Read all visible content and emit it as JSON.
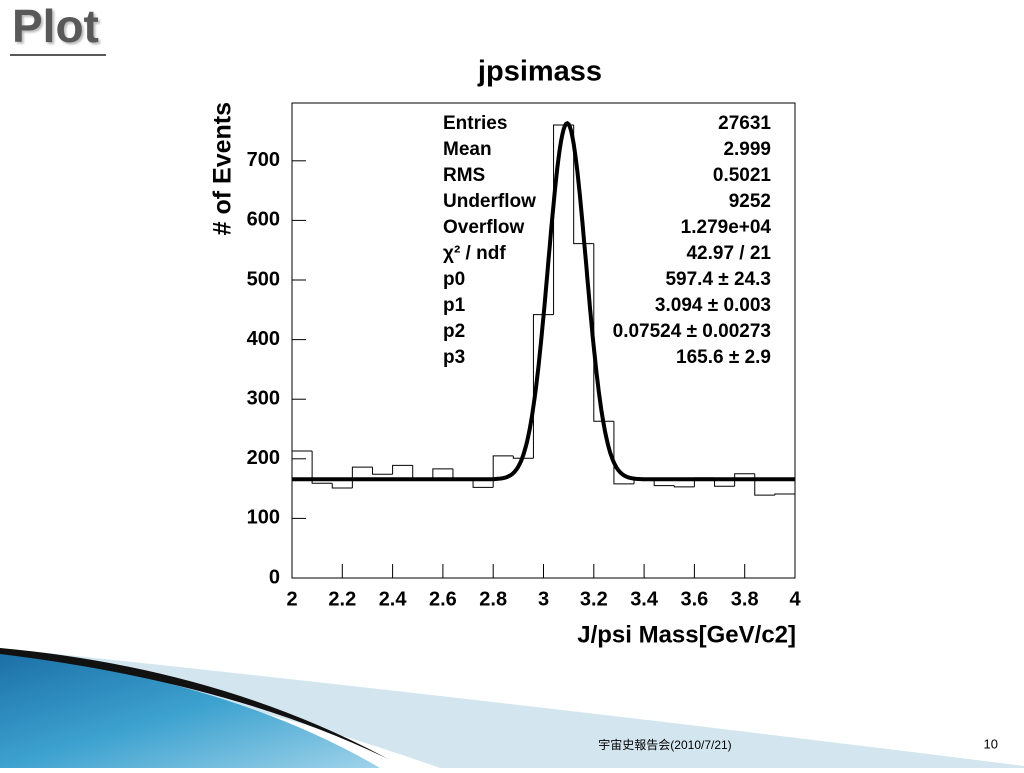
{
  "slide_title": "Plot",
  "footer": "宇宙史報告会(2010/7/21)",
  "page_number": "10",
  "chart_data": {
    "type": "histogram",
    "title": "jpsimass",
    "x_label": "J/psi Mass[GeV/c2]",
    "y_label": "# of Events",
    "bins": [
      2,
      2.08,
      2.16,
      2.24,
      2.32,
      2.4,
      2.48,
      2.56,
      2.64,
      2.72,
      2.8,
      2.88,
      2.96,
      3.04,
      3.12,
      3.2,
      3.28,
      3.36,
      3.44,
      3.52,
      3.6,
      3.68,
      3.76,
      3.84,
      3.92,
      4
    ],
    "values": [
      213,
      159,
      151,
      186,
      174,
      189,
      165,
      183,
      165,
      152,
      205,
      201,
      442,
      760,
      561,
      263,
      158,
      165,
      155,
      153,
      168,
      154,
      175,
      139,
      141
    ],
    "color": "#000000",
    "fit_color": "#000000",
    "xlim": [
      2,
      4
    ],
    "ylim": [
      0,
      797
    ],
    "xticks": [
      2,
      2.2,
      2.4,
      2.6,
      2.8,
      3,
      3.2,
      3.4,
      3.6,
      3.8,
      4
    ],
    "yticks": [
      0,
      100,
      200,
      300,
      400,
      500,
      600,
      700
    ],
    "stats": [
      {
        "label": "Entries",
        "value": "27631"
      },
      {
        "label": "Mean",
        "value": "2.999"
      },
      {
        "label": "RMS",
        "value": "0.5021"
      },
      {
        "label": "Underflow",
        "value": "9252"
      },
      {
        "label": "Overflow",
        "value": "1.279e+04"
      },
      {
        "label": "χ² / ndf",
        "value": "42.97 / 21"
      }
    ],
    "fit": [
      {
        "name": "p0",
        "value": 597.4,
        "error": 24.3,
        "label": "597.4 ± 24.3"
      },
      {
        "name": "p1",
        "value": 3.094,
        "error": 0.003,
        "label": "3.094 ± 0.003"
      },
      {
        "name": "p2",
        "value": 0.07524,
        "error": 0.00273,
        "label": "0.07524 ± 0.00273"
      },
      {
        "name": "p3",
        "value": 165.6,
        "error": 2.9,
        "label": "165.6 ± 2.9"
      }
    ]
  }
}
